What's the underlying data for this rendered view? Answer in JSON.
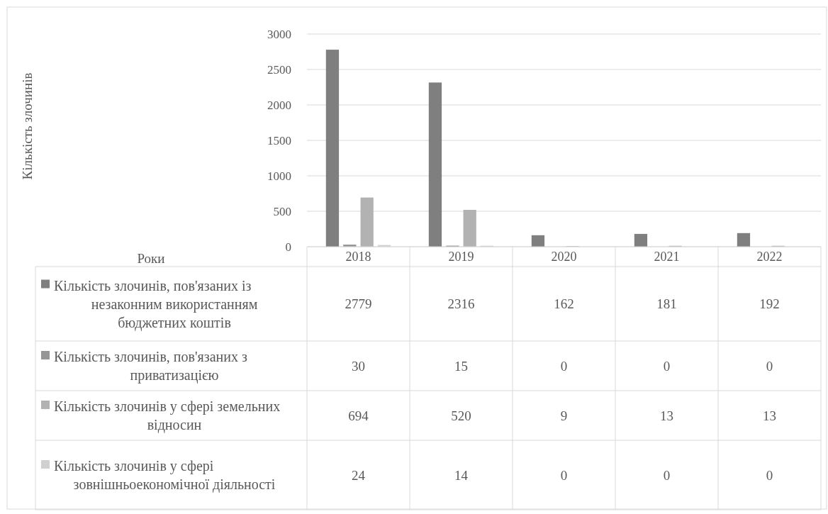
{
  "chart_data": {
    "type": "bar",
    "annotations": [
      "Кількість злочинів",
      "Роки"
    ],
    "categories": [
      "2018",
      "2019",
      "2020",
      "2021",
      "2022"
    ],
    "series": [
      {
        "name": "Кількість злочинів, пов'язаних із незаконним використанням бюджетних коштів",
        "color": "#7f7f7f",
        "values": [
          2779,
          2316,
          162,
          181,
          192
        ]
      },
      {
        "name": "Кількість злочинів, пов'язаних з приватизацією",
        "color": "#969696",
        "values": [
          30,
          15,
          0,
          0,
          0
        ]
      },
      {
        "name": "Кількість злочинів у сфері земельних відносин",
        "color": "#b2b2b2",
        "values": [
          694,
          520,
          9,
          13,
          13
        ]
      },
      {
        "name": "Кількість злочинів у сфері зовнішньоекономічної діяльності",
        "color": "#d0d0d0",
        "values": [
          24,
          14,
          0,
          0,
          0
        ]
      }
    ],
    "ylim": [
      0,
      3000
    ],
    "yticks": [
      0,
      500,
      1000,
      1500,
      2000,
      2500,
      3000
    ],
    "grid": "y",
    "legend": "bottom",
    "data_labels": true
  }
}
